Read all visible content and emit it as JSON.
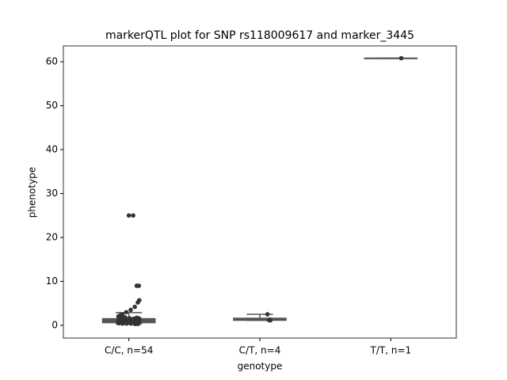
{
  "chart_data": {
    "type": "box",
    "title": "markerQTL plot for SNP rs118009617 and marker_3445",
    "x_label": "genotype",
    "y_label": "phenotype",
    "categories": [
      "C/C, n=54",
      "C/T, n=4",
      "T/T, n=1"
    ],
    "boxes": [
      {
        "q1": 0.6,
        "median": 1.0,
        "q3": 1.5,
        "whislo": 0.3,
        "whishi": 2.9
      },
      {
        "q1": 1.15,
        "median": 1.25,
        "q3": 1.6,
        "whislo": 1.1,
        "whishi": 2.5
      },
      {
        "q1": 60.8,
        "median": 60.8,
        "q3": 60.8,
        "whislo": 60.8,
        "whishi": 60.8
      }
    ],
    "points": [
      [
        25,
        25,
        9,
        9,
        5.7,
        5.2,
        4.2,
        3.5,
        3,
        2.5,
        2.2,
        2,
        2,
        1.8,
        1.8,
        1.6,
        1.5,
        1.5,
        1.4,
        1.3,
        1.3,
        1.2,
        1.2,
        1.1,
        1.1,
        1.0,
        1.0,
        1.0,
        0.9,
        0.9,
        0.9,
        0.8,
        0.8,
        0.8,
        0.7,
        0.7,
        0.7,
        0.6,
        0.6,
        0.6,
        0.5,
        0.5,
        0.5,
        0.4,
        0.4,
        0.4,
        0.3,
        0.3,
        1.4,
        1.6,
        1.7,
        0.9,
        1.1,
        1.2
      ],
      [
        2.5,
        1.3,
        1.1,
        1.2
      ],
      [
        60.8
      ]
    ],
    "box_color": "#555555",
    "point_color": "#333333",
    "ylim": [
      -2.9,
      63.6
    ],
    "yticks": [
      0,
      10,
      20,
      30,
      40,
      50,
      60
    ]
  }
}
